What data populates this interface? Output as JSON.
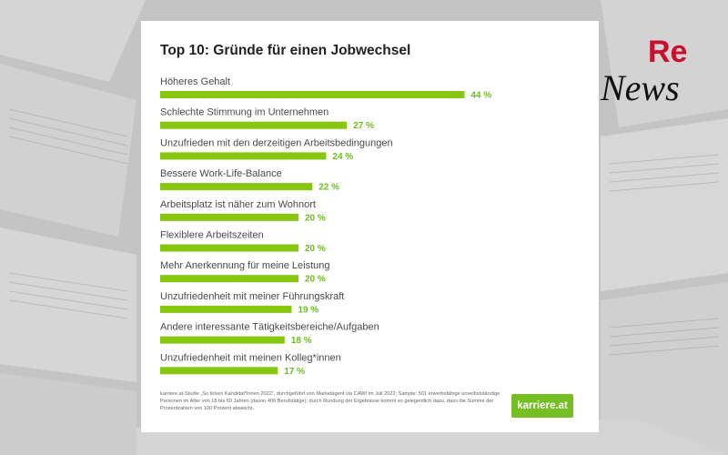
{
  "logo": {
    "top": "Re",
    "bottom": "News"
  },
  "card": {
    "footnote": "karriere.at-Studie „So ticken Kandidat*innen 2022“, durchgeführt von Marketagent via CAWI im Juli 2022; Sample: 501 erwerbsfähige unselbstständige Personen im Alter von 18 bis 60 Jahren (davon 406 Berufstätige); durch Rundung der Ergebnisse kommt es gelegentlich dazu, dass die Summe der Prozentzahlen von 100 Prozent abweicht.",
    "brand": "karriere.at"
  },
  "colors": {
    "bar": "#87c70f",
    "value_label": "#6abd1c",
    "logo_red": "#c8102e",
    "brand": "#75be24"
  },
  "chart_data": {
    "type": "bar",
    "orientation": "horizontal",
    "title": "Top 10: Gründe für einen Jobwechsel",
    "categories": [
      "Höheres Gehalt",
      "Schlechte Stimmung im Unternehmen",
      "Unzufrieden mit den derzeitigen Arbeitsbedingungen",
      "Bessere Work-Life-Balance",
      "Arbeitsplatz ist näher zum Wohnort",
      "Flexiblere Arbeitszeiten",
      "Mehr Anerkennung für meine Leistung",
      "Unzufriedenheit mit meiner Führungskraft",
      "Andere interessante Tätigkeitsbereiche/Aufgaben",
      "Unzufriedenheit mit meinen Kolleg*innen"
    ],
    "values": [
      44,
      27,
      24,
      22,
      20,
      20,
      20,
      19,
      18,
      17
    ],
    "value_labels": [
      "44 %",
      "27 %",
      "24 %",
      "22 %",
      "20 %",
      "20 %",
      "20 %",
      "19 %",
      "18 %",
      "17 %"
    ],
    "grid": false
  }
}
